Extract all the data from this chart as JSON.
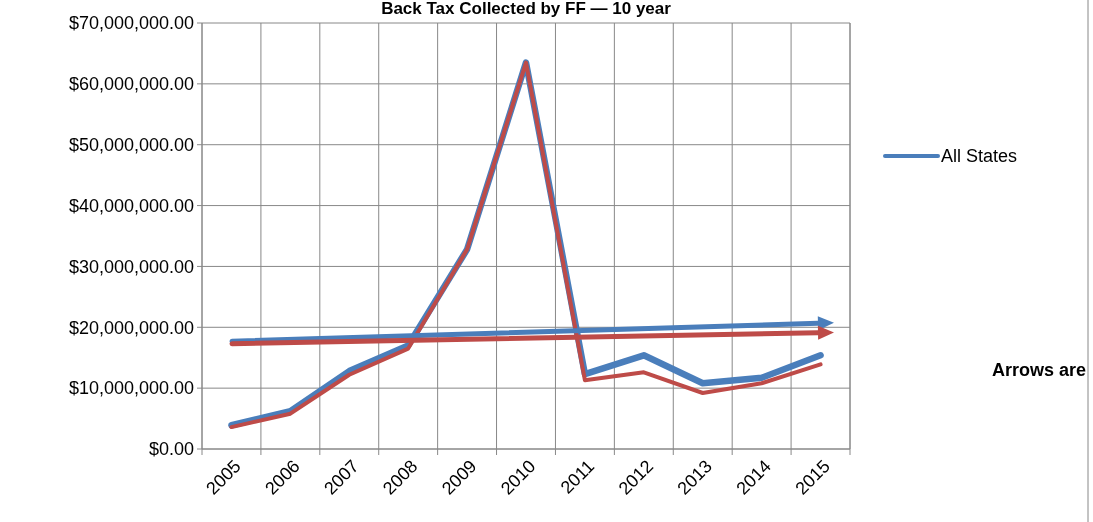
{
  "chart_data": {
    "type": "line",
    "title": "Back Tax Collected by FF — 10 year",
    "categories": [
      "2005",
      "2006",
      "2007",
      "2008",
      "2009",
      "2010",
      "2011",
      "2012",
      "2013",
      "2014",
      "2015"
    ],
    "series": [
      {
        "name": "All States",
        "color": "#4a7ebb",
        "values": [
          3900000,
          6200000,
          12800000,
          17000000,
          32800000,
          63500000,
          12300000,
          15400000,
          10800000,
          11700000,
          15400000
        ]
      },
      {
        "color": "#be4b48",
        "values": [
          3600000,
          5800000,
          12200000,
          16500000,
          32800000,
          63500000,
          11300000,
          12600000,
          9200000,
          10800000,
          13900000
        ]
      }
    ],
    "ylim": [
      0,
      70000000
    ],
    "yticks": [
      {
        "value": 0,
        "label": "$0.00"
      },
      {
        "value": 10000000,
        "label": "$10,000,000.00"
      },
      {
        "value": 20000000,
        "label": "$20,000,000.00"
      },
      {
        "value": 30000000,
        "label": "$30,000,000.00"
      },
      {
        "value": 40000000,
        "label": "$40,000,000.00"
      },
      {
        "value": 50000000,
        "label": "$50,000,000.00"
      },
      {
        "value": 60000000,
        "label": "$60,000,000.00"
      },
      {
        "value": 70000000,
        "label": "$70,000,000.00"
      }
    ],
    "grid": true,
    "legend": "right",
    "annotations": [
      "Arrows are"
    ]
  }
}
